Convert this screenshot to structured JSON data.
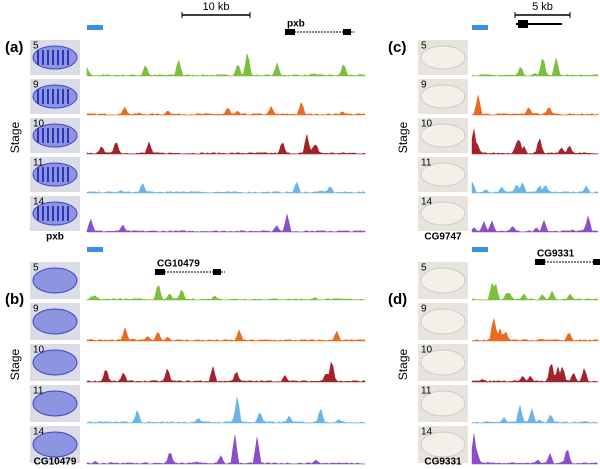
{
  "panels": [
    {
      "label": "(a)",
      "axis_label": "Stage",
      "stages": [
        "5",
        "9",
        "10",
        "11",
        "14"
      ],
      "scale_bar": "10 kb",
      "gene": "pxb",
      "image_caption": "pxb"
    },
    {
      "label": "(c)",
      "axis_label": "Stage",
      "stages": [
        "5",
        "9",
        "10",
        "11",
        "14"
      ],
      "scale_bar": "5 kb",
      "image_caption": "CG9747"
    },
    {
      "label": "(b)",
      "axis_label": "Stage",
      "stages": [
        "5",
        "9",
        "10",
        "11",
        "14"
      ],
      "gene": "CG10479",
      "image_caption": "CG10479"
    },
    {
      "label": "(d)",
      "axis_label": "Stage",
      "stages": [
        "5",
        "9",
        "10",
        "11",
        "14"
      ],
      "gene": "CG9331",
      "image_caption": "CG9331"
    }
  ]
}
